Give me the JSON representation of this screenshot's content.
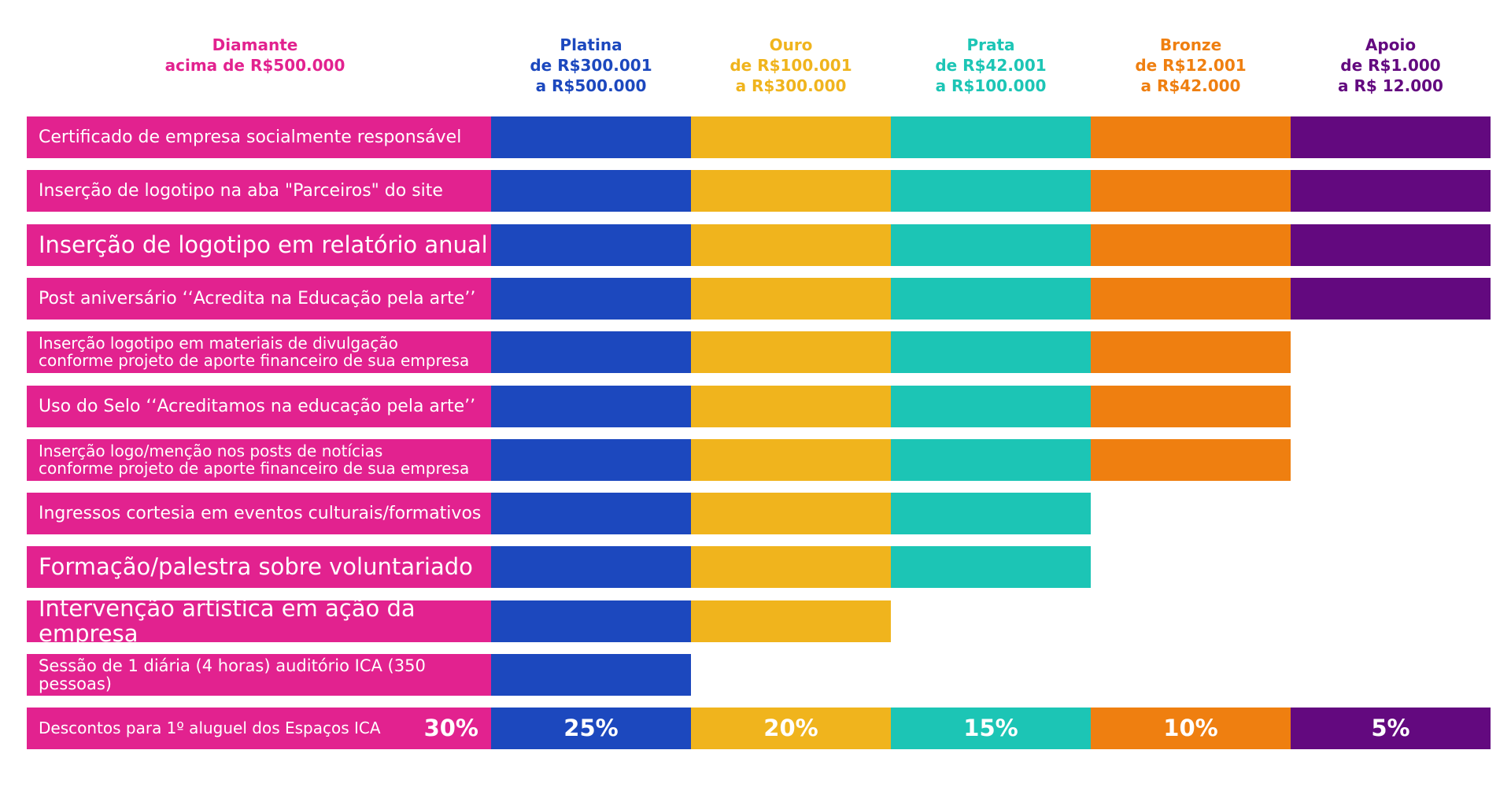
{
  "colors": {
    "diamante": "#E2228F",
    "platina": "#1C48BE",
    "ouro": "#F0B41D",
    "prata": "#1CC5B5",
    "bronze": "#EF7F10",
    "apoio": "#63097F"
  },
  "headers": [
    {
      "key": "diamante",
      "name": "Diamante",
      "range": [
        "acima de R$500.000"
      ]
    },
    {
      "key": "platina",
      "name": "Platina",
      "range": [
        "de R$300.001",
        "a R$500.000"
      ]
    },
    {
      "key": "ouro",
      "name": "Ouro",
      "range": [
        "de R$100.001",
        "a R$300.000"
      ]
    },
    {
      "key": "prata",
      "name": "Prata",
      "range": [
        "de R$42.001",
        "a R$100.000"
      ]
    },
    {
      "key": "bronze",
      "name": "Bronze",
      "range": [
        "de R$12.001",
        "a R$42.000"
      ]
    },
    {
      "key": "apoio",
      "name": "Apoio",
      "range": [
        "de R$1.000",
        "a R$ 12.000"
      ]
    }
  ],
  "chart_data": {
    "type": "table",
    "title": "",
    "tiers": [
      "Diamante",
      "Platina",
      "Ouro",
      "Prata",
      "Bronze",
      "Apoio"
    ],
    "benefits": [
      {
        "label": "Certificado de empresa socialmente responsável",
        "tiers_included": 6,
        "size": "normal"
      },
      {
        "label": "Inserção de logotipo na aba \"Parceiros\" do site",
        "tiers_included": 6,
        "size": "normal"
      },
      {
        "label": "Inserção de logotipo em relatório anual",
        "tiers_included": 6,
        "size": "large"
      },
      {
        "label": "Post aniversário ‘‘Acredita na Educação pela arte’’",
        "tiers_included": 6,
        "size": "normal"
      },
      {
        "label": "Inserção logotipo em materiais de divulgação\nconforme projeto de aporte financeiro de sua empresa",
        "tiers_included": 5,
        "size": "small"
      },
      {
        "label": "Uso do Selo ‘‘Acreditamos na educação pela arte’’",
        "tiers_included": 5,
        "size": "normal"
      },
      {
        "label": "Inserção logo/menção nos posts de notícias\nconforme projeto de aporte financeiro de sua empresa",
        "tiers_included": 5,
        "size": "small"
      },
      {
        "label": "Ingressos cortesia em eventos culturais/formativos",
        "tiers_included": 4,
        "size": "normal"
      },
      {
        "label": "Formação/palestra sobre voluntariado",
        "tiers_included": 4,
        "size": "large"
      },
      {
        "label": "Intervenção artística em ação da empresa",
        "tiers_included": 3,
        "size": "large"
      },
      {
        "label": "Sessão de 1 diária (4 horas) auditório ICA (350 pessoas)",
        "tiers_included": 2,
        "size": "medium"
      }
    ],
    "discount": {
      "label": "Descontos para 1º aluguel dos Espaços ICA",
      "values": [
        "30%",
        "25%",
        "20%",
        "15%",
        "10%",
        "5%"
      ]
    }
  }
}
